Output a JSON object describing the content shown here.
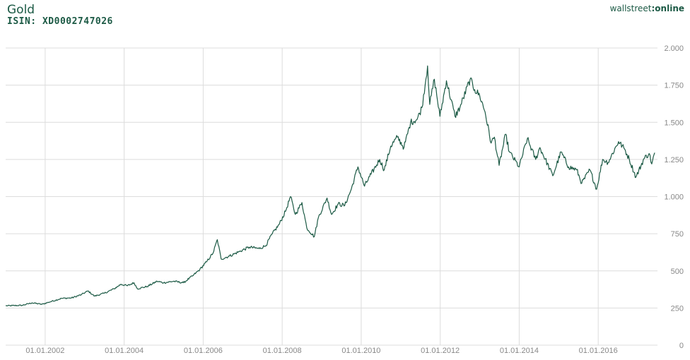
{
  "header": {
    "title": "Gold",
    "isin": "ISIN: XD0002747026",
    "brand_part1": "wallstreet",
    "brand_part2": ":online"
  },
  "colors": {
    "line": "#1c5a45",
    "grid": "#dcdcdc",
    "tick_text": "#888888"
  },
  "chart_data": {
    "type": "line",
    "title": "Gold",
    "xlabel": "",
    "ylabel": "",
    "xlim": [
      "2001-01-01",
      "2017-07-01"
    ],
    "ylim": [
      0,
      2000
    ],
    "grid": true,
    "x_ticks": [
      "01.01.2002",
      "01.01.2004",
      "01.01.2006",
      "01.01.2008",
      "01.01.2010",
      "01.01.2012",
      "01.01.2014",
      "01.01.2016"
    ],
    "y_ticks": [
      {
        "value": 0,
        "label": "0"
      },
      {
        "value": 250,
        "label": "250"
      },
      {
        "value": 500,
        "label": "500"
      },
      {
        "value": 750,
        "label": "750"
      },
      {
        "value": 1000,
        "label": "1.000"
      },
      {
        "value": 1250,
        "label": "1.250"
      },
      {
        "value": 1500,
        "label": "1.500"
      },
      {
        "value": 1750,
        "label": "1.750"
      },
      {
        "value": 2000,
        "label": "2.000"
      }
    ],
    "series": [
      {
        "name": "Gold",
        "points": [
          [
            "2001-01-01",
            265
          ],
          [
            "2001-06-01",
            268
          ],
          [
            "2001-09-01",
            285
          ],
          [
            "2001-12-01",
            275
          ],
          [
            "2002-03-01",
            295
          ],
          [
            "2002-06-01",
            315
          ],
          [
            "2002-09-01",
            318
          ],
          [
            "2002-12-01",
            340
          ],
          [
            "2003-02-01",
            365
          ],
          [
            "2003-04-01",
            330
          ],
          [
            "2003-07-01",
            350
          ],
          [
            "2003-10-01",
            380
          ],
          [
            "2003-12-01",
            410
          ],
          [
            "2004-02-01",
            400
          ],
          [
            "2004-04-01",
            420
          ],
          [
            "2004-05-01",
            380
          ],
          [
            "2004-08-01",
            395
          ],
          [
            "2004-11-01",
            430
          ],
          [
            "2005-01-01",
            420
          ],
          [
            "2005-04-01",
            430
          ],
          [
            "2005-07-01",
            420
          ],
          [
            "2005-10-01",
            470
          ],
          [
            "2005-12-01",
            510
          ],
          [
            "2006-02-01",
            560
          ],
          [
            "2006-04-01",
            620
          ],
          [
            "2006-05-10",
            710
          ],
          [
            "2006-06-15",
            580
          ],
          [
            "2006-09-01",
            600
          ],
          [
            "2006-12-01",
            630
          ],
          [
            "2007-03-01",
            660
          ],
          [
            "2007-06-01",
            650
          ],
          [
            "2007-08-01",
            670
          ],
          [
            "2007-10-01",
            750
          ],
          [
            "2007-12-01",
            810
          ],
          [
            "2008-02-01",
            900
          ],
          [
            "2008-03-17",
            1000
          ],
          [
            "2008-05-01",
            880
          ],
          [
            "2008-07-01",
            960
          ],
          [
            "2008-08-15",
            790
          ],
          [
            "2008-10-24",
            730
          ],
          [
            "2008-12-01",
            860
          ],
          [
            "2009-02-20",
            990
          ],
          [
            "2009-04-01",
            880
          ],
          [
            "2009-06-01",
            950
          ],
          [
            "2009-08-01",
            940
          ],
          [
            "2009-10-01",
            1050
          ],
          [
            "2009-12-01",
            1200
          ],
          [
            "2010-02-01",
            1070
          ],
          [
            "2010-04-01",
            1150
          ],
          [
            "2010-06-20",
            1250
          ],
          [
            "2010-08-01",
            1180
          ],
          [
            "2010-10-01",
            1340
          ],
          [
            "2010-12-01",
            1400
          ],
          [
            "2011-02-01",
            1330
          ],
          [
            "2011-04-01",
            1500
          ],
          [
            "2011-06-01",
            1520
          ],
          [
            "2011-07-15",
            1600
          ],
          [
            "2011-09-06",
            1880
          ],
          [
            "2011-09-26",
            1620
          ],
          [
            "2011-11-08",
            1790
          ],
          [
            "2011-12-29",
            1540
          ],
          [
            "2012-02-28",
            1780
          ],
          [
            "2012-05-16",
            1540
          ],
          [
            "2012-07-01",
            1600
          ],
          [
            "2012-10-04",
            1790
          ],
          [
            "2012-11-15",
            1720
          ],
          [
            "2013-01-01",
            1680
          ],
          [
            "2013-02-20",
            1570
          ],
          [
            "2013-04-15",
            1360
          ],
          [
            "2013-05-15",
            1400
          ],
          [
            "2013-06-28",
            1210
          ],
          [
            "2013-08-28",
            1420
          ],
          [
            "2013-10-01",
            1300
          ],
          [
            "2013-12-31",
            1200
          ],
          [
            "2014-03-15",
            1390
          ],
          [
            "2014-06-01",
            1250
          ],
          [
            "2014-07-10",
            1330
          ],
          [
            "2014-11-07",
            1140
          ],
          [
            "2015-01-22",
            1300
          ],
          [
            "2015-04-01",
            1200
          ],
          [
            "2015-06-15",
            1180
          ],
          [
            "2015-08-01",
            1090
          ],
          [
            "2015-10-15",
            1180
          ],
          [
            "2015-12-17",
            1050
          ],
          [
            "2016-02-11",
            1250
          ],
          [
            "2016-04-01",
            1230
          ],
          [
            "2016-07-06",
            1370
          ],
          [
            "2016-09-01",
            1320
          ],
          [
            "2016-10-15",
            1250
          ],
          [
            "2016-12-15",
            1130
          ],
          [
            "2017-02-28",
            1255
          ],
          [
            "2017-04-15",
            1290
          ],
          [
            "2017-05-09",
            1220
          ],
          [
            "2017-06-06",
            1295
          ]
        ]
      }
    ]
  }
}
